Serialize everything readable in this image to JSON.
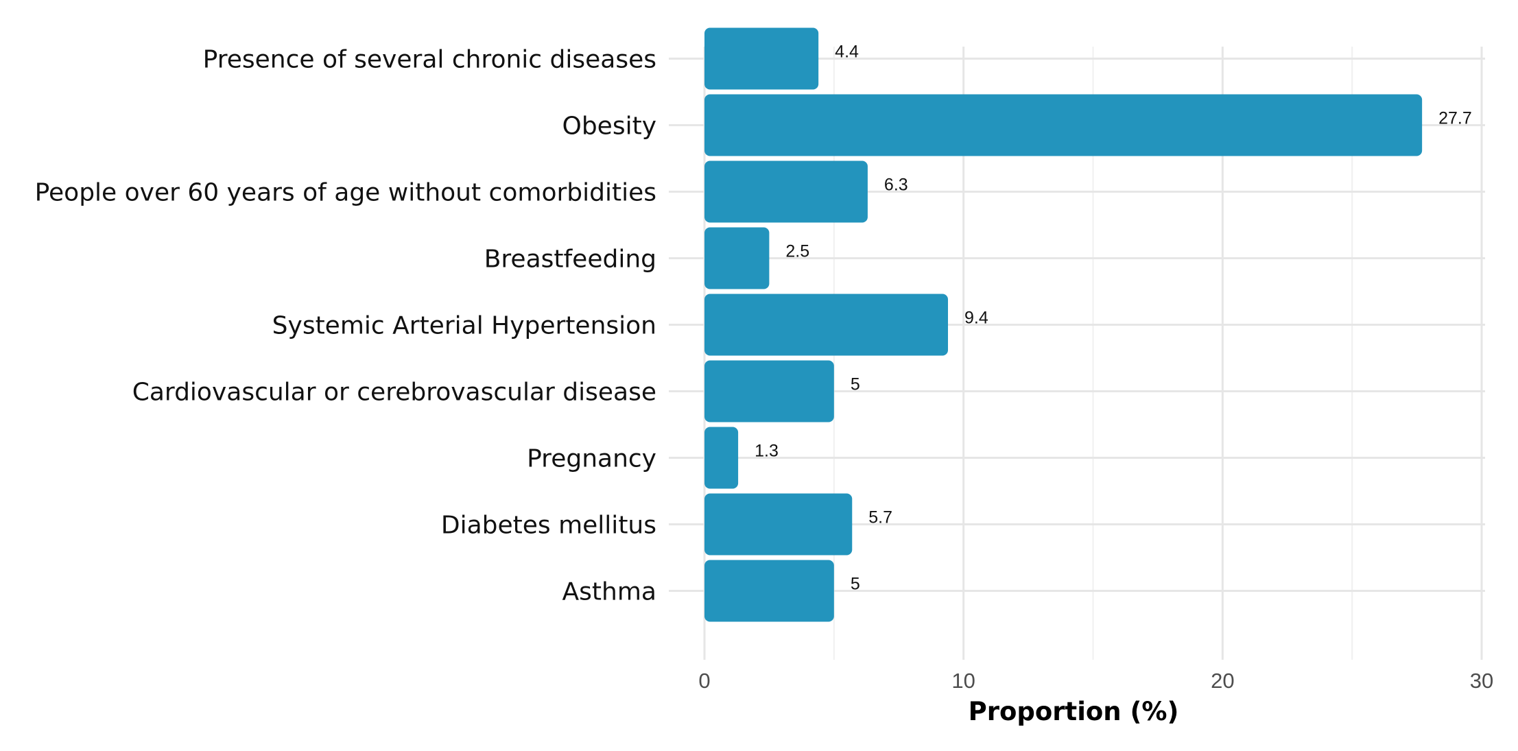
{
  "chart_data": {
    "type": "bar",
    "orientation": "horizontal",
    "title": "",
    "xlabel": "Proportion (%)",
    "ylabel": "",
    "xlim": [
      0,
      30
    ],
    "xticks": [
      0,
      10,
      20,
      30
    ],
    "grid": true,
    "bar_color": "#2394bd",
    "categories": [
      "Presence of several chronic diseases",
      "Obesity",
      "People over 60 years of age without comorbidities",
      "Breastfeeding",
      "Systemic Arterial Hypertension",
      "Cardiovascular or cerebrovascular disease",
      "Pregnancy",
      "Diabetes mellitus",
      "Asthma"
    ],
    "values": [
      4.4,
      27.7,
      6.3,
      2.5,
      9.4,
      5,
      1.3,
      5.7,
      5
    ],
    "value_labels": [
      "4.4",
      "27.7",
      "6.3",
      "2.5",
      "9.4",
      "5",
      "1.3",
      "5.7",
      "5"
    ]
  }
}
